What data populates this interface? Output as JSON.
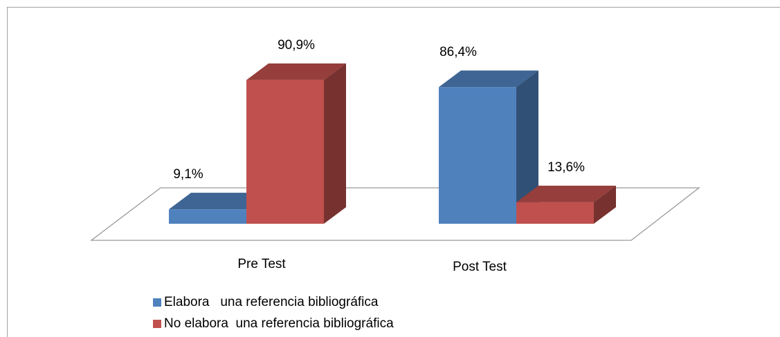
{
  "chart_data": {
    "type": "bar",
    "categories": [
      "Pre Test",
      "Post Test"
    ],
    "series": [
      {
        "name": "Elabora   una referencia bibliográfica",
        "color": "#4f81bd",
        "values": [
          9.1,
          86.4
        ],
        "value_labels": [
          "9,1%",
          "86,4%"
        ]
      },
      {
        "name": "No elabora  una referencia bibliográfica",
        "color": "#c0504d",
        "values": [
          90.9,
          13.6
        ],
        "value_labels": [
          "90,9%",
          "13,6%"
        ]
      }
    ],
    "legend": "bottom-left"
  }
}
